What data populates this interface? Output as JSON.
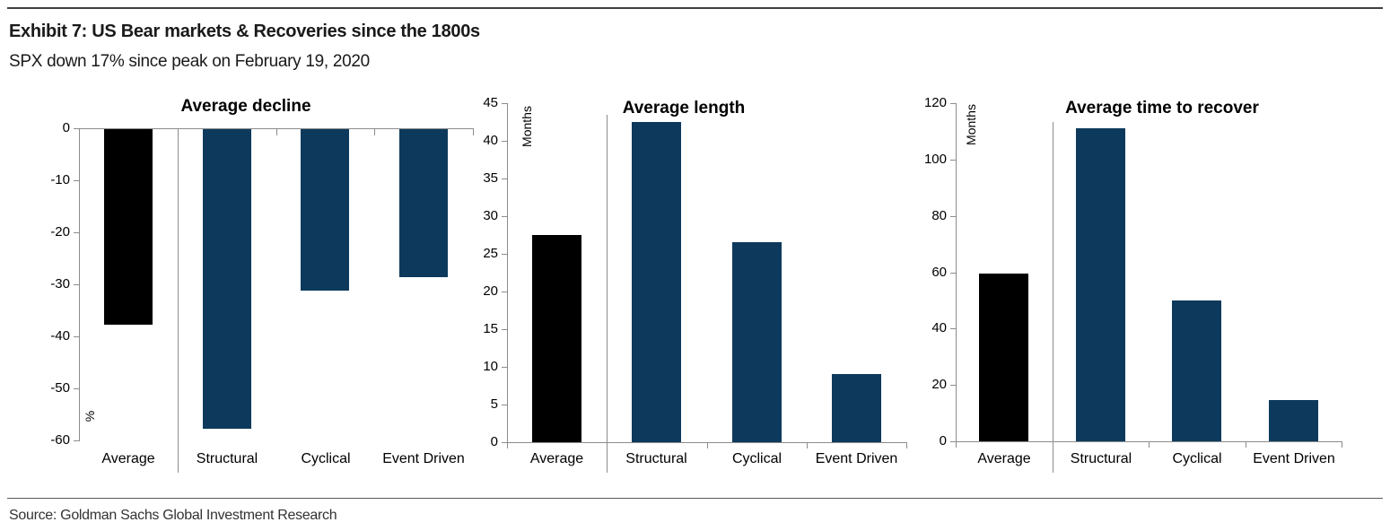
{
  "header": {
    "title": "Exhibit 7: US Bear markets & Recoveries since the 1800s",
    "subtitle": "SPX down 17% since peak on February 19, 2020"
  },
  "footer": {
    "source": "Source: Goldman Sachs Global Investment Research"
  },
  "colors": {
    "average_bar": "#000000",
    "type_bar": "#0d3a5c",
    "axis_line": "#8c8c8c"
  },
  "chart_data": [
    {
      "type": "bar",
      "title": "Average decline",
      "ylabel": "%",
      "categories": [
        "Average",
        "Structural",
        "Cyclical",
        "Event Driven"
      ],
      "values": [
        -37.5,
        -57.5,
        -31,
        -28.5
      ],
      "ylim": [
        -60,
        0
      ],
      "yticks": [
        0,
        -10,
        -20,
        -30,
        -40,
        -50,
        -60
      ],
      "grid": false,
      "legend": "none",
      "bar_colors": [
        "#000000",
        "#0d3a5c",
        "#0d3a5c",
        "#0d3a5c"
      ]
    },
    {
      "type": "bar",
      "title": "Average length",
      "ylabel": "Months",
      "categories": [
        "Average",
        "Structural",
        "Cyclical",
        "Event Driven"
      ],
      "values": [
        27.5,
        42.5,
        26.5,
        9
      ],
      "ylim": [
        0,
        45
      ],
      "yticks": [
        45,
        40,
        35,
        30,
        25,
        20,
        15,
        10,
        5,
        0
      ],
      "grid": false,
      "legend": "none",
      "bar_colors": [
        "#000000",
        "#0d3a5c",
        "#0d3a5c",
        "#0d3a5c"
      ]
    },
    {
      "type": "bar",
      "title": "Average time to recover",
      "ylabel": "Months",
      "categories": [
        "Average",
        "Structural",
        "Cyclical",
        "Event Driven"
      ],
      "values": [
        59.5,
        111,
        50,
        14.5
      ],
      "ylim": [
        0,
        120
      ],
      "yticks": [
        120,
        100,
        80,
        60,
        40,
        20,
        0
      ],
      "grid": false,
      "legend": "none",
      "bar_colors": [
        "#000000",
        "#0d3a5c",
        "#0d3a5c",
        "#0d3a5c"
      ]
    }
  ]
}
